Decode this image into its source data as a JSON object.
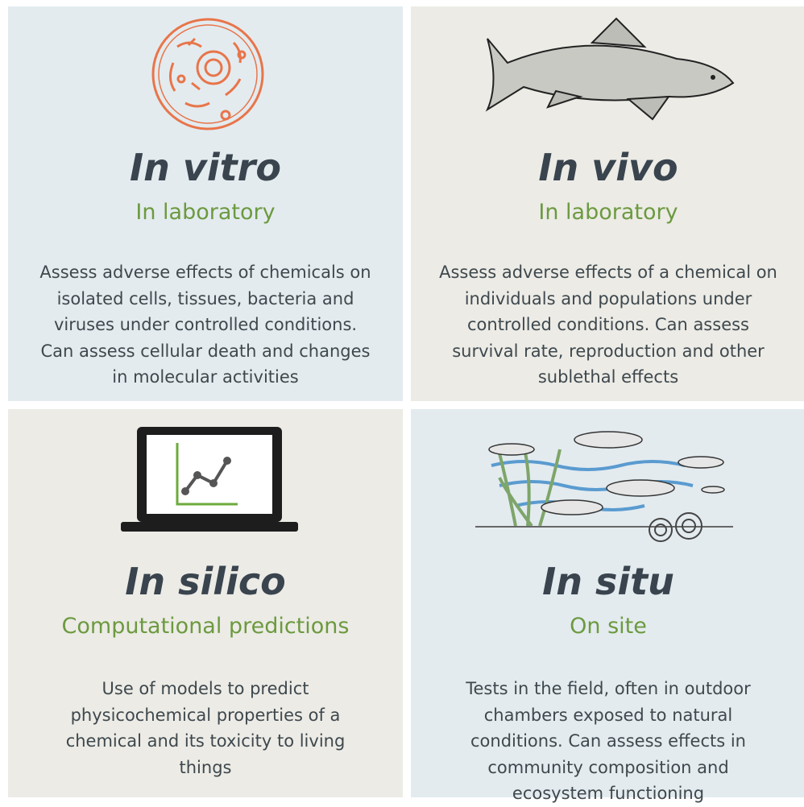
{
  "panels": [
    {
      "title": "In vitro",
      "subtitle": "In laboratory",
      "description": [
        "Assess adverse effects of chemicals on",
        "isolated cells, tissues, bacteria and",
        "viruses under controlled conditions.",
        "Can assess cellular death and changes",
        "in molecular activities"
      ]
    },
    {
      "title": "In vivo",
      "subtitle": "In laboratory",
      "description": [
        "Assess adverse effects of a chemical on",
        "individuals and populations under",
        "controlled conditions. Can assess",
        "survival rate, reproduction and other",
        "sublethal effects"
      ]
    },
    {
      "title": "In silico",
      "subtitle": "Computational predictions",
      "description": [
        "Use of models to predict",
        "physicochemical properties of a",
        "chemical and its toxicity to living",
        "things"
      ]
    },
    {
      "title": "In situ",
      "subtitle": "On site",
      "description": [
        "Tests in the field, often in outdoor",
        "chambers exposed to natural",
        "conditions. Can assess effects in",
        "community composition and",
        "ecosystem functioning"
      ]
    }
  ]
}
